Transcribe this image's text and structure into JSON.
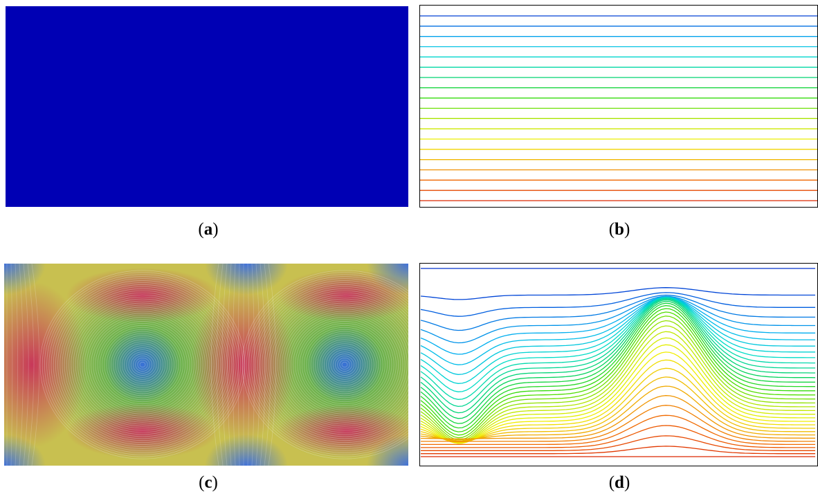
{
  "panels": [
    {
      "id": "a",
      "label": "a"
    },
    {
      "id": "b",
      "label": "b"
    },
    {
      "id": "c",
      "label": "c"
    },
    {
      "id": "d",
      "label": "d"
    }
  ],
  "colormap": [
    "#0000b4",
    "#0050dc",
    "#00b4f0",
    "#00dcc8",
    "#00d264",
    "#3cdc00",
    "#b4e600",
    "#f0f000",
    "#f0b400",
    "#f06400",
    "#dc2800"
  ],
  "panel_a": {
    "fill_color": "#0000b4"
  },
  "panel_b": {
    "line_count": 19,
    "frame": true
  },
  "panel_c": {
    "vortex_count": 2,
    "high_color": "#c8305a",
    "low_color": "#1a2ab0"
  },
  "panel_d": {
    "line_count": 36,
    "frame": true
  }
}
